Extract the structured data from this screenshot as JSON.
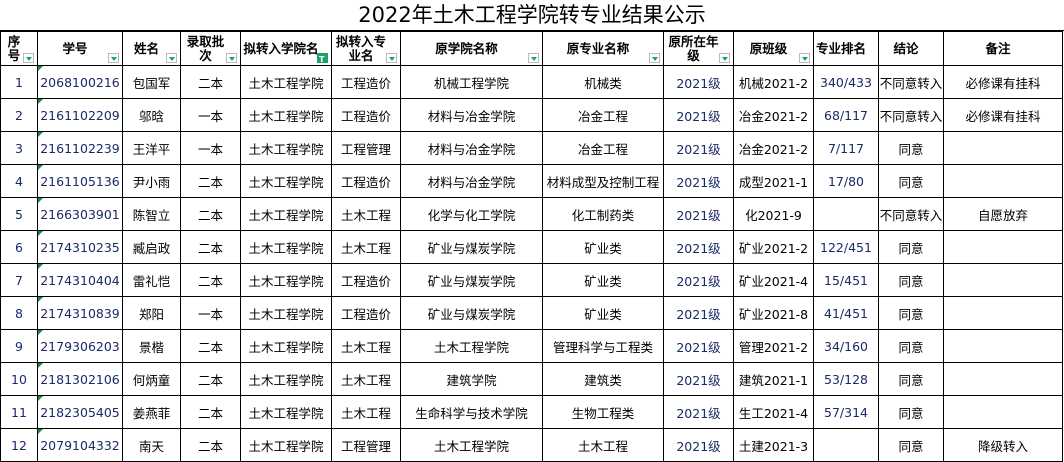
{
  "title": "2022年土木工程学院转专业结果公示",
  "columns": [
    {
      "label": "序号",
      "filter": true
    },
    {
      "label": "学号",
      "filter": true
    },
    {
      "label": "姓名",
      "filter": true
    },
    {
      "label": "录取批次",
      "filter": true
    },
    {
      "label": "拟转入学院名",
      "filter": true,
      "filter_active": true
    },
    {
      "label": "拟转入专业名",
      "filter": true
    },
    {
      "label": "原学院名称",
      "filter": true
    },
    {
      "label": "原专业名称",
      "filter": true
    },
    {
      "label": "原所在年级",
      "filter": true
    },
    {
      "label": "原班级",
      "filter": true
    },
    {
      "label": "专业排名",
      "filter": false
    },
    {
      "label": "结论",
      "filter": false
    },
    {
      "label": "备注",
      "filter": false
    }
  ],
  "rows": [
    [
      "1",
      "2068100216",
      "包国军",
      "二本",
      "土木工程学院",
      "工程造价",
      "机械工程学院",
      "机械类",
      "2021级",
      "机械2021-2",
      "340/433",
      "不同意转入",
      "必修课有挂科"
    ],
    [
      "2",
      "2161102209",
      "邬晗",
      "一本",
      "土木工程学院",
      "工程造价",
      "材料与冶金学院",
      "冶金工程",
      "2021级",
      "冶金2021-2",
      "68/117",
      "不同意转入",
      "必修课有挂科"
    ],
    [
      "3",
      "2161102239",
      "王洋平",
      "一本",
      "土木工程学院",
      "工程管理",
      "材料与冶金学院",
      "冶金工程",
      "2021级",
      "冶金2021-2",
      "7/117",
      "同意",
      ""
    ],
    [
      "4",
      "2161105136",
      "尹小雨",
      "二本",
      "土木工程学院",
      "工程造价",
      "材料与冶金学院",
      "材料成型及控制工程",
      "2021级",
      "成型2021-1",
      "17/80",
      "同意",
      ""
    ],
    [
      "5",
      "2166303901",
      "陈智立",
      "二本",
      "土木工程学院",
      "土木工程",
      "化学与化工学院",
      "化工制药类",
      "2021级",
      "化2021-9",
      "",
      "不同意转入",
      "自愿放弃"
    ],
    [
      "6",
      "2174310235",
      "臧启政",
      "二本",
      "土木工程学院",
      "土木工程",
      "矿业与煤炭学院",
      "矿业类",
      "2021级",
      "矿业2021-2",
      "122/451",
      "同意",
      ""
    ],
    [
      "7",
      "2174310404",
      "雷礼恺",
      "二本",
      "土木工程学院",
      "工程造价",
      "矿业与煤炭学院",
      "矿业类",
      "2021级",
      "矿业2021-4",
      "15/451",
      "同意",
      ""
    ],
    [
      "8",
      "2174310839",
      "郑阳",
      "一本",
      "土木工程学院",
      "工程造价",
      "矿业与煤炭学院",
      "矿业类",
      "2021级",
      "矿业2021-8",
      "41/451",
      "同意",
      ""
    ],
    [
      "9",
      "2179306203",
      "景楷",
      "二本",
      "土木工程学院",
      "土木工程",
      "土木工程学院",
      "管理科学与工程类",
      "2021级",
      "管理2021-2",
      "34/160",
      "同意",
      ""
    ],
    [
      "10",
      "2181302106",
      "何炳童",
      "二本",
      "土木工程学院",
      "土木工程",
      "建筑学院",
      "建筑类",
      "2021级",
      "建筑2021-1",
      "53/128",
      "同意",
      ""
    ],
    [
      "11",
      "2182305405",
      "姜燕菲",
      "二本",
      "土木工程学院",
      "土木工程",
      "生命科学与技术学院",
      "生物工程类",
      "2021级",
      "生工2021-4",
      "57/314",
      "同意",
      ""
    ],
    [
      "12",
      "2079104332",
      "南天",
      "二本",
      "土木工程学院",
      "工程管理",
      "土木工程学院",
      "土木工程",
      "2021级",
      "土建2021-3",
      "",
      "同意",
      "降级转入"
    ]
  ],
  "colors": {
    "filter_accent": "#1aa36b",
    "number_text": "#1a2a66"
  }
}
